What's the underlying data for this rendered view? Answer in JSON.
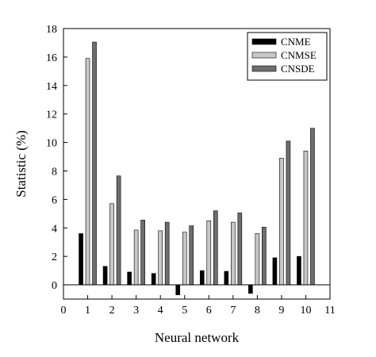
{
  "chart_data": {
    "type": "bar",
    "title": "",
    "xlabel": "Neural network",
    "ylabel": "Statistic (%)",
    "xlim": [
      0,
      11
    ],
    "ylim": [
      -1,
      18
    ],
    "x_ticks": [
      0,
      1,
      2,
      3,
      4,
      5,
      6,
      7,
      8,
      9,
      10,
      11
    ],
    "y_ticks": [
      0,
      2,
      4,
      6,
      8,
      10,
      12,
      14,
      16,
      18
    ],
    "grid": false,
    "legend_position": "top-right",
    "categories": [
      1,
      2,
      3,
      4,
      5,
      6,
      7,
      8,
      9,
      10
    ],
    "series": [
      {
        "name": "CNME",
        "color": "#000000",
        "values": [
          3.6,
          1.3,
          0.9,
          0.8,
          -0.7,
          1.0,
          0.95,
          -0.6,
          1.9,
          2.0
        ]
      },
      {
        "name": "CNMSE",
        "color": "#c8c8c8",
        "values": [
          15.9,
          5.7,
          3.85,
          3.8,
          3.7,
          4.5,
          4.4,
          3.6,
          8.9,
          9.4
        ]
      },
      {
        "name": "CNSDE",
        "color": "#6e6e6e",
        "values": [
          17.05,
          7.65,
          4.55,
          4.4,
          4.15,
          5.2,
          5.05,
          4.05,
          10.1,
          11.0
        ]
      }
    ]
  }
}
